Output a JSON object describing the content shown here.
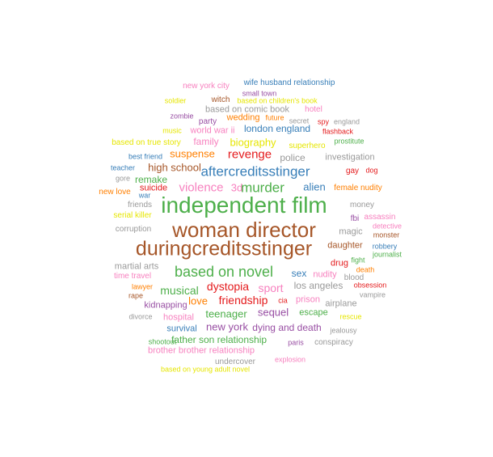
{
  "colors": {
    "red": "#e41a1c",
    "blue": "#377eb8",
    "green": "#4daf4a",
    "purple": "#984ea3",
    "orange": "#ff7f00",
    "yellow": "#e6e600",
    "brown": "#a65628",
    "pink": "#f781bf",
    "gray": "#999999"
  },
  "words": [
    {
      "text": "new york city",
      "color": "pink"
    },
    {
      "text": "wife husband relationship",
      "color": "blue"
    },
    {
      "text": "small town",
      "color": "purple"
    },
    {
      "text": "witch",
      "color": "brown"
    },
    {
      "text": "soldier",
      "color": "yellow"
    },
    {
      "text": "based on children's book",
      "color": "yellow"
    },
    {
      "text": "based on comic book",
      "color": "gray"
    },
    {
      "text": "hotel",
      "color": "pink"
    },
    {
      "text": "zombie",
      "color": "purple"
    },
    {
      "text": "party",
      "color": "purple"
    },
    {
      "text": "wedding",
      "color": "orange"
    },
    {
      "text": "future",
      "color": "orange"
    },
    {
      "text": "secret",
      "color": "gray"
    },
    {
      "text": "spy",
      "color": "red"
    },
    {
      "text": "england",
      "color": "gray"
    },
    {
      "text": "music",
      "color": "yellow"
    },
    {
      "text": "world war ii",
      "color": "pink"
    },
    {
      "text": "london england",
      "color": "blue"
    },
    {
      "text": "flashback",
      "color": "red"
    },
    {
      "text": "based on true story",
      "color": "yellow"
    },
    {
      "text": "family",
      "color": "pink"
    },
    {
      "text": "biography",
      "color": "yellow"
    },
    {
      "text": "superhero",
      "color": "yellow"
    },
    {
      "text": "prostitute",
      "color": "green"
    },
    {
      "text": "best friend",
      "color": "blue"
    },
    {
      "text": "suspense",
      "color": "orange"
    },
    {
      "text": "revenge",
      "color": "red"
    },
    {
      "text": "police",
      "color": "gray"
    },
    {
      "text": "investigation",
      "color": "gray"
    },
    {
      "text": "teacher",
      "color": "blue"
    },
    {
      "text": "high school",
      "color": "brown"
    },
    {
      "text": "aftercreditsstinger",
      "color": "blue"
    },
    {
      "text": "gay",
      "color": "red"
    },
    {
      "text": "dog",
      "color": "red"
    },
    {
      "text": "gore",
      "color": "gray"
    },
    {
      "text": "remake",
      "color": "green"
    },
    {
      "text": "suicide",
      "color": "red"
    },
    {
      "text": "violence",
      "color": "pink"
    },
    {
      "text": "3d",
      "color": "pink"
    },
    {
      "text": "murder",
      "color": "green"
    },
    {
      "text": "alien",
      "color": "blue"
    },
    {
      "text": "female nudity",
      "color": "orange"
    },
    {
      "text": "new love",
      "color": "orange"
    },
    {
      "text": "war",
      "color": "blue"
    },
    {
      "text": "friends",
      "color": "gray"
    },
    {
      "text": "independent film",
      "color": "green"
    },
    {
      "text": "money",
      "color": "gray"
    },
    {
      "text": "serial killer",
      "color": "yellow"
    },
    {
      "text": "fbi",
      "color": "purple"
    },
    {
      "text": "assassin",
      "color": "pink"
    },
    {
      "text": "detective",
      "color": "pink"
    },
    {
      "text": "corruption",
      "color": "gray"
    },
    {
      "text": "woman director",
      "color": "brown"
    },
    {
      "text": "magic",
      "color": "gray"
    },
    {
      "text": "monster",
      "color": "brown"
    },
    {
      "text": "duringcreditsstinger",
      "color": "brown"
    },
    {
      "text": "daughter",
      "color": "brown"
    },
    {
      "text": "robbery",
      "color": "blue"
    },
    {
      "text": "journalist",
      "color": "green"
    },
    {
      "text": "fight",
      "color": "green"
    },
    {
      "text": "martial arts",
      "color": "gray"
    },
    {
      "text": "based on novel",
      "color": "green"
    },
    {
      "text": "sex",
      "color": "blue"
    },
    {
      "text": "nudity",
      "color": "pink"
    },
    {
      "text": "drug",
      "color": "red"
    },
    {
      "text": "death",
      "color": "orange"
    },
    {
      "text": "time travel",
      "color": "pink"
    },
    {
      "text": "blood",
      "color": "gray"
    },
    {
      "text": "lawyer",
      "color": "orange"
    },
    {
      "text": "dystopia",
      "color": "red"
    },
    {
      "text": "sport",
      "color": "pink"
    },
    {
      "text": "los angeles",
      "color": "gray"
    },
    {
      "text": "obsession",
      "color": "red"
    },
    {
      "text": "musical",
      "color": "green"
    },
    {
      "text": "rape",
      "color": "brown"
    },
    {
      "text": "love",
      "color": "orange"
    },
    {
      "text": "friendship",
      "color": "red"
    },
    {
      "text": "cia",
      "color": "red"
    },
    {
      "text": "prison",
      "color": "pink"
    },
    {
      "text": "vampire",
      "color": "gray"
    },
    {
      "text": "kidnapping",
      "color": "purple"
    },
    {
      "text": "airplane",
      "color": "gray"
    },
    {
      "text": "teenager",
      "color": "green"
    },
    {
      "text": "sequel",
      "color": "purple"
    },
    {
      "text": "escape",
      "color": "green"
    },
    {
      "text": "divorce",
      "color": "gray"
    },
    {
      "text": "hospital",
      "color": "pink"
    },
    {
      "text": "rescue",
      "color": "yellow"
    },
    {
      "text": "survival",
      "color": "blue"
    },
    {
      "text": "new york",
      "color": "purple"
    },
    {
      "text": "dying and death",
      "color": "purple"
    },
    {
      "text": "jealousy",
      "color": "gray"
    },
    {
      "text": "shootout",
      "color": "green"
    },
    {
      "text": "father son relationship",
      "color": "green"
    },
    {
      "text": "paris",
      "color": "purple"
    },
    {
      "text": "conspiracy",
      "color": "gray"
    },
    {
      "text": "brother brother relationship",
      "color": "pink"
    },
    {
      "text": "undercover",
      "color": "gray"
    },
    {
      "text": "explosion",
      "color": "pink"
    },
    {
      "text": "based on young adult novel",
      "color": "yellow"
    }
  ]
}
